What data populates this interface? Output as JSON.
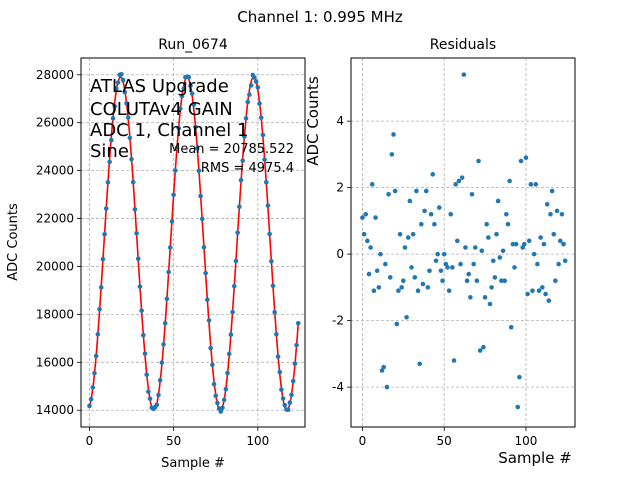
{
  "figure": {
    "suptitle": "Channel 1: 0.995 MHz"
  },
  "chart_data": [
    {
      "type": "scatter+line",
      "title": "Run_0674",
      "xlabel": "Sample #",
      "ylabel": "ADC Counts",
      "xlim": [
        -5,
        128
      ],
      "ylim": [
        13300,
        28700
      ],
      "xticks": [
        0,
        50,
        100
      ],
      "yticks": [
        14000,
        16000,
        18000,
        20000,
        22000,
        24000,
        26000,
        28000
      ],
      "grid": true,
      "annotation_lines": [
        "ATLAS Upgrade",
        "COLUTAv4 GAIN",
        "ADC 1, Channel 1",
        "Sine"
      ],
      "stats_lines": [
        "Mean = 20785.522",
        "RMS = 4975.4"
      ],
      "fit_color": "#ff0000",
      "point_color": "#1f77b4",
      "fit": {
        "model": "sine",
        "mean": 20950,
        "amplitude": 6950,
        "period": 39.5,
        "peak_at": 18.5,
        "samples": 125
      }
    },
    {
      "type": "scatter",
      "title": "Residuals",
      "xlabel": "Sample #",
      "ylabel": "ADC Counts",
      "xlim": [
        -7,
        130
      ],
      "ylim": [
        -5.2,
        5.9
      ],
      "xticks": [
        0,
        50,
        100
      ],
      "yticks": [
        -4,
        -2,
        0,
        2,
        4
      ],
      "grid": true,
      "point_color": "#1f77b4",
      "residuals": [
        1.1,
        0.6,
        1.2,
        0.4,
        -0.6,
        0.2,
        2.1,
        -1.1,
        1.1,
        -0.5,
        -1.0,
        0.0,
        -3.5,
        -3.4,
        -0.3,
        -4.0,
        1.8,
        -0.7,
        3.0,
        3.6,
        1.9,
        -2.1,
        -1.1,
        0.6,
        -1.0,
        -0.8,
        0.2,
        -1.9,
        0.5,
        1.6,
        -0.4,
        0.6,
        -0.7,
        1.9,
        -1.1,
        -3.3,
        0.9,
        -0.9,
        1.3,
        1.9,
        -1.0,
        -0.5,
        1.2,
        2.4,
        0.9,
        -0.2,
        0.0,
        1.4,
        -0.5,
        -0.8,
        0.0,
        -0.3,
        -0.4,
        -1.1,
        1.2,
        -0.4,
        -3.2,
        2.1,
        0.4,
        2.2,
        -0.3,
        2.3,
        5.4,
        0.2,
        -0.8,
        -0.6,
        -1.3,
        1.8,
        -0.3,
        0.2,
        -0.8,
        2.8,
        -2.9,
        0.1,
        -2.8,
        -1.3,
        0.9,
        0.5,
        -1.5,
        -1.0,
        -0.2,
        -0.7,
        0.6,
        1.6,
        -0.1,
        -0.8,
        0.1,
        -0.8,
        1.2,
        0.9,
        2.2,
        -2.2,
        0.3,
        -0.4,
        0.3,
        -4.6,
        -3.7,
        2.8,
        0.2,
        0.3,
        2.9,
        -1.2,
        0.4,
        2.1,
        -1.1,
        0.0,
        2.1,
        -0.3,
        -1.1,
        0.5,
        -1.0,
        0.3,
        -1.2,
        1.5,
        -1.4,
        1.2,
        1.9,
        0.6,
        -0.8,
        1.3,
        -0.3,
        0.4,
        1.2,
        0.3,
        -0.2
      ]
    }
  ]
}
